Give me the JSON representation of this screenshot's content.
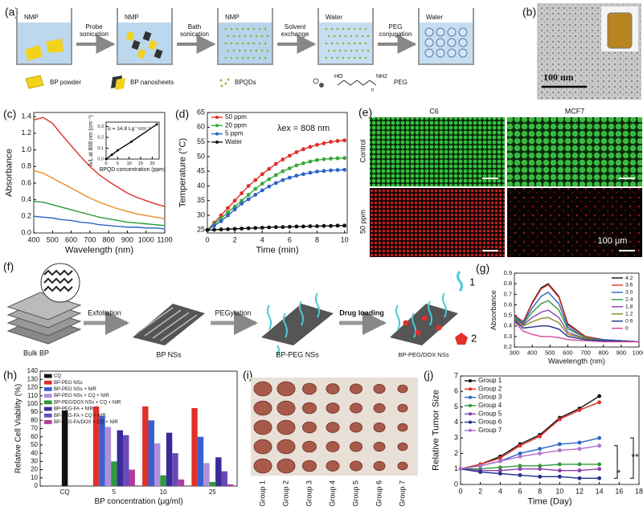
{
  "panels": {
    "a": {
      "label": "(a)",
      "beakers": [
        "NMP",
        "NMP",
        "NMP",
        "Water",
        "Water"
      ],
      "steps": [
        [
          "Probe",
          "sonication"
        ],
        [
          "Bath",
          "sonication"
        ],
        [
          "Solvent",
          "exchange"
        ],
        [
          "PEG",
          "conjugation"
        ]
      ],
      "legend": [
        "BP powder",
        "BP nanosheets",
        "BPQDs",
        "PEG"
      ],
      "peg_formula": [
        "HO",
        "NH2",
        "n"
      ]
    },
    "b": {
      "label": "(b)",
      "scale_bar": "100 nm"
    },
    "e": {
      "label": "(e)",
      "columns": [
        "C6",
        "MCF7"
      ],
      "rows": [
        "Control",
        "50 ppm"
      ],
      "scale_bar": "100 μm"
    },
    "f": {
      "label": "(f)",
      "stages": [
        "Bulk BP",
        "BP NSs",
        "BP-PEG NSs",
        "BP-PEG/DOX NSs"
      ],
      "steps": [
        "Exfoliation",
        "PEGylation",
        "Drug loading"
      ],
      "legend": [
        "1",
        "2"
      ]
    },
    "i": {
      "label": "(i)",
      "groups": [
        "Group 1",
        "Group 2",
        "Group 3",
        "Group 4",
        "Group 5",
        "Group 6",
        "Group 7"
      ]
    }
  },
  "chart_data": [
    {
      "type": "line",
      "panel_label": "(c)",
      "xlabel": "Wavelength (nm)",
      "ylabel": "Absorbance",
      "xlim": [
        400,
        1100
      ],
      "ylim": [
        0,
        1.45
      ],
      "xticks": [
        400,
        500,
        600,
        700,
        800,
        900,
        1000,
        1100
      ],
      "yticks": [
        {
          "value": 0,
          "label": "0.0"
        },
        0.2,
        0.4,
        0.6,
        0.8,
        {
          "value": 1,
          "label": "1.0"
        },
        1.2,
        1.4
      ],
      "x": [
        400,
        450,
        500,
        550,
        600,
        650,
        700,
        750,
        800,
        850,
        900,
        950,
        1000,
        1050,
        1100
      ],
      "series": [
        {
          "color": "#e0302a",
          "values": [
            1.36,
            1.39,
            1.32,
            1.18,
            1.05,
            0.92,
            0.8,
            0.7,
            0.62,
            0.55,
            0.48,
            0.43,
            0.39,
            0.35,
            0.32
          ]
        },
        {
          "color": "#f08a24",
          "values": [
            0.75,
            0.72,
            0.66,
            0.6,
            0.54,
            0.48,
            0.42,
            0.37,
            0.33,
            0.29,
            0.26,
            0.23,
            0.21,
            0.19,
            0.17
          ]
        },
        {
          "color": "#2c9a3a",
          "values": [
            0.38,
            0.37,
            0.34,
            0.31,
            0.28,
            0.25,
            0.22,
            0.19,
            0.17,
            0.15,
            0.13,
            0.12,
            0.11,
            0.1,
            0.09
          ]
        },
        {
          "color": "#2a64c8",
          "values": [
            0.2,
            0.19,
            0.18,
            0.16,
            0.15,
            0.13,
            0.12,
            0.1,
            0.09,
            0.08,
            0.07,
            0.07,
            0.06,
            0.06,
            0.05
          ]
        }
      ],
      "inset": {
        "type": "line",
        "markers": true,
        "annotation": "α = 14.8 Lg⁻¹cm⁻¹",
        "xlabel": "BPQD concentration (ppm)",
        "ylabel": "A/L at 808 nm (cm⁻¹)",
        "xlim": [
          0,
          23
        ],
        "ylim": [
          0,
          0.34
        ],
        "xticks": [
          0,
          5,
          10,
          15,
          20
        ],
        "yticks": [
          {
            "value": 0,
            "label": "0.0"
          },
          0.1,
          0.2,
          0.3
        ],
        "x": [
          0,
          2.5,
          5,
          11,
          22
        ],
        "series": [
          {
            "color": "#000000",
            "values": [
              0,
              0.04,
              0.08,
              0.16,
              0.32
            ]
          }
        ]
      }
    },
    {
      "type": "line",
      "panel_label": "(d)",
      "markers": true,
      "legend": "upper left",
      "annotation": "λex = 808 nm",
      "xlabel": "Time (min)",
      "ylabel": "Temperature (°C)",
      "xlim": [
        0,
        10.2
      ],
      "ylim": [
        24,
        65
      ],
      "xticks": [
        0,
        2,
        4,
        6,
        8,
        10
      ],
      "yticks": [
        25,
        30,
        35,
        40,
        45,
        50,
        55,
        60,
        65
      ],
      "x": [
        0,
        0.5,
        1,
        1.5,
        2,
        2.5,
        3,
        3.5,
        4,
        4.5,
        5,
        5.5,
        6,
        6.5,
        7,
        7.5,
        8,
        8.5,
        9,
        9.5,
        10
      ],
      "series": [
        {
          "name": "50 ppm",
          "color": "#e0302a",
          "values": [
            25,
            27.5,
            30,
            32.5,
            35,
            37.5,
            40,
            42,
            44,
            45.8,
            47.5,
            49,
            50.3,
            51.5,
            52.5,
            53.3,
            54,
            54.5,
            55,
            55.3,
            55.5
          ]
        },
        {
          "name": "20 ppm",
          "color": "#3aa83a",
          "values": [
            25,
            27,
            29,
            31,
            33,
            35,
            37,
            39,
            40.8,
            42.3,
            43.7,
            45,
            46,
            47,
            47.7,
            48.3,
            48.8,
            49.1,
            49.3,
            49.4,
            49.5
          ]
        },
        {
          "name": "5 ppm",
          "color": "#2a64c8",
          "values": [
            25,
            26.5,
            28,
            30,
            32,
            34,
            35.5,
            37,
            38.5,
            39.8,
            41,
            42,
            42.8,
            43.5,
            44,
            44.5,
            44.9,
            45.1,
            45.3,
            45.4,
            45.5
          ]
        },
        {
          "name": "Water",
          "color": "#111111",
          "values": [
            25,
            25.1,
            25.2,
            25.3,
            25.4,
            25.5,
            25.6,
            25.7,
            25.8,
            25.9,
            26,
            26,
            26.1,
            26.2,
            26.2,
            26.3,
            26.3,
            26.4,
            26.4,
            26.5,
            26.5
          ]
        }
      ]
    },
    {
      "type": "line",
      "panel_label": "(g)",
      "legend": "upper right",
      "xlabel": "Wavelength (nm)",
      "ylabel": "Absorbance",
      "xlim": [
        300,
        1000
      ],
      "ylim": [
        0.2,
        0.9
      ],
      "xticks": [
        300,
        400,
        500,
        600,
        700,
        800,
        900,
        1000
      ],
      "yticks": [
        0.2,
        0.3,
        0.4,
        0.5,
        0.6,
        0.7,
        0.8,
        0.9
      ],
      "x": [
        300,
        350,
        400,
        450,
        490,
        550,
        600,
        700,
        800,
        1000
      ],
      "series": [
        {
          "name": "4.2",
          "color": "#111111",
          "values": [
            0.5,
            0.44,
            0.62,
            0.76,
            0.8,
            0.68,
            0.42,
            0.3,
            0.27,
            0.25
          ]
        },
        {
          "name": "3.6",
          "color": "#e0302a",
          "values": [
            0.5,
            0.44,
            0.61,
            0.75,
            0.79,
            0.67,
            0.41,
            0.3,
            0.27,
            0.25
          ]
        },
        {
          "name": "3.0",
          "color": "#2a64c8",
          "values": [
            0.49,
            0.43,
            0.57,
            0.68,
            0.72,
            0.61,
            0.39,
            0.29,
            0.27,
            0.25
          ]
        },
        {
          "name": "2.4",
          "color": "#2c9a3a",
          "values": [
            0.48,
            0.42,
            0.53,
            0.61,
            0.64,
            0.55,
            0.37,
            0.29,
            0.26,
            0.25
          ]
        },
        {
          "name": "1.8",
          "color": "#8a3fb0",
          "values": [
            0.47,
            0.41,
            0.48,
            0.53,
            0.55,
            0.48,
            0.34,
            0.28,
            0.26,
            0.25
          ]
        },
        {
          "name": "1.2",
          "color": "#8a8a20",
          "values": [
            0.46,
            0.4,
            0.44,
            0.47,
            0.48,
            0.43,
            0.32,
            0.28,
            0.26,
            0.25
          ]
        },
        {
          "name": "0.6",
          "color": "#1f2f8a",
          "values": [
            0.45,
            0.38,
            0.39,
            0.4,
            0.4,
            0.37,
            0.3,
            0.27,
            0.26,
            0.25
          ]
        },
        {
          "name": "0",
          "color": "#d04a9a",
          "values": [
            0.44,
            0.35,
            0.32,
            0.3,
            0.3,
            0.29,
            0.27,
            0.26,
            0.25,
            0.25
          ]
        }
      ]
    },
    {
      "type": "bar",
      "panel_label": "(h)",
      "legend": "upper left",
      "xlabel": "BP concentration (μg/ml)",
      "ylabel": "Relative Cell Viability (%)",
      "ylim": [
        0,
        140
      ],
      "yticks": [
        0,
        10,
        20,
        30,
        40,
        50,
        60,
        70,
        80,
        90,
        100,
        110,
        120,
        130,
        140
      ],
      "categories": [
        "CQ",
        "5",
        "10",
        "25"
      ],
      "series": [
        {
          "name": "CQ",
          "color": "#111111",
          "values": [
            92,
            null,
            null,
            null
          ]
        },
        {
          "name": "BP-PEG NSs",
          "color": "#e0302a",
          "values": [
            null,
            97,
            97,
            95
          ]
        },
        {
          "name": "BP-PEG NSs + NIR",
          "color": "#3a5fd0",
          "values": [
            null,
            85,
            80,
            60
          ]
        },
        {
          "name": "BP-PEG NSs + CQ + NIR",
          "color": "#b090d8",
          "values": [
            null,
            72,
            52,
            28
          ]
        },
        {
          "name": "BP-PEG/DOX NSs + CQ + NIR",
          "color": "#2c9a3a",
          "values": [
            null,
            30,
            13,
            5
          ]
        },
        {
          "name": "BP-PEG-FA + NIR",
          "color": "#3a2a9a",
          "values": [
            null,
            68,
            65,
            35
          ]
        },
        {
          "name": "BP-PEG-FA + CQ + NIR",
          "color": "#6a4ab8",
          "values": [
            null,
            62,
            40,
            18
          ]
        },
        {
          "name": "BP-PEG-FA/DOX + CQ + NIR",
          "color": "#b03aa0",
          "values": [
            null,
            20,
            8,
            2
          ]
        }
      ]
    },
    {
      "type": "line",
      "panel_label": "(j)",
      "markers": true,
      "legend": "upper left",
      "xlabel": "Time (Day)",
      "ylabel": "Relative Tumor Size",
      "xlim": [
        0,
        18
      ],
      "ylim": [
        0,
        7
      ],
      "xticks": [
        0,
        2,
        4,
        6,
        8,
        10,
        12,
        14,
        16,
        18
      ],
      "yticks": [
        0,
        1,
        2,
        3,
        4,
        5,
        6,
        7
      ],
      "annotations": [
        "*",
        "**"
      ],
      "x": [
        0,
        2,
        4,
        6,
        8,
        10,
        12,
        14
      ],
      "series": [
        {
          "name": "Group 1",
          "color": "#111111",
          "values": [
            1,
            1.3,
            1.8,
            2.6,
            3.2,
            4.3,
            4.9,
            5.7
          ]
        },
        {
          "name": "Group 2",
          "color": "#e0302a",
          "values": [
            1,
            1.3,
            1.7,
            2.5,
            3.1,
            4.2,
            4.8,
            5.3
          ]
        },
        {
          "name": "Group 3",
          "color": "#2a64c8",
          "values": [
            1,
            1.2,
            1.5,
            2,
            2.3,
            2.6,
            2.7,
            3
          ]
        },
        {
          "name": "Group 4",
          "color": "#2c9a3a",
          "values": [
            1,
            1,
            1.1,
            1.2,
            1.2,
            1.3,
            1.3,
            1.3
          ]
        },
        {
          "name": "Group 5",
          "color": "#8a3fb0",
          "values": [
            1,
            0.9,
            0.9,
            1,
            1,
            0.9,
            0.9,
            1
          ]
        },
        {
          "name": "Group 6",
          "color": "#1f2f8a",
          "values": [
            1,
            0.8,
            0.7,
            0.6,
            0.5,
            0.5,
            0.4,
            0.4
          ]
        },
        {
          "name": "Group 7",
          "color": "#b070c8",
          "values": [
            1,
            1.2,
            1.5,
            1.8,
            2,
            2.2,
            2.3,
            2.5
          ]
        }
      ]
    }
  ]
}
